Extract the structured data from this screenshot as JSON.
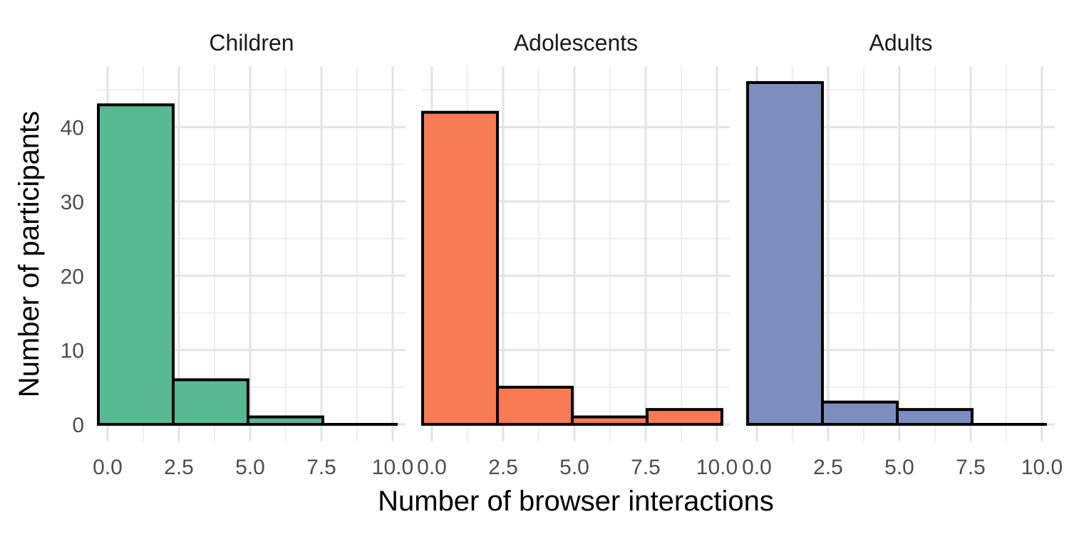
{
  "chart_data": {
    "type": "bar",
    "subtype": "faceted histogram",
    "xlabel": "Number of browser interactions",
    "ylabel": "Number of participants",
    "xlim": [
      -0.35,
      10.45
    ],
    "ylim": [
      -2.3,
      48.2
    ],
    "x_ticks": [
      "0.0",
      "2.5",
      "5.0",
      "7.5",
      "10.0"
    ],
    "y_ticks": [
      "0",
      "10",
      "20",
      "30",
      "40"
    ],
    "grid": true,
    "bin_edges": [
      0,
      2.625,
      5.25,
      7.875,
      10.5
    ],
    "bin_edges_note": "bins are shifted so that they start at -0.1",
    "panels": [
      {
        "name": "Children",
        "color": "#57BA93",
        "values": [
          43,
          6,
          1,
          0
        ]
      },
      {
        "name": "Adolescents",
        "color": "#F87B53",
        "values": [
          42,
          5,
          1,
          2
        ]
      },
      {
        "name": "Adults",
        "color": "#7C8EBF",
        "values": [
          46,
          3,
          2,
          0
        ]
      }
    ]
  }
}
